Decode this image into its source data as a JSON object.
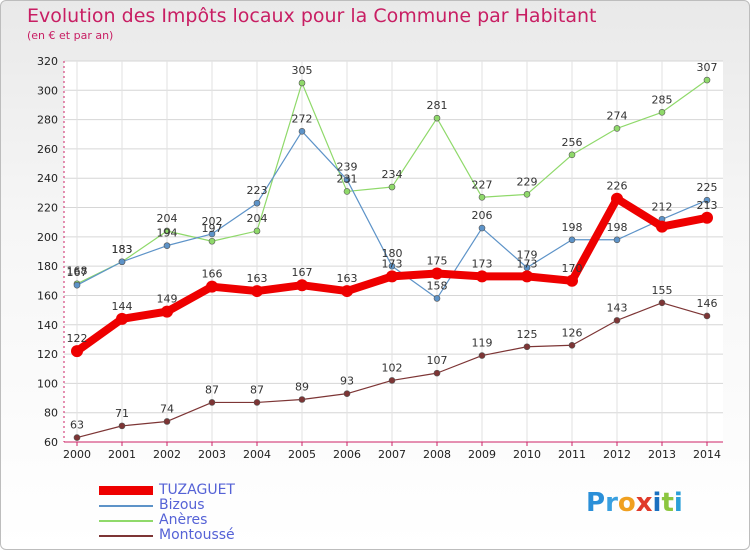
{
  "title": "Evolution des Impôts locaux pour la Commune par Habitant",
  "subtitle": "(en € et par an)",
  "logo": {
    "text": "Proxiti",
    "letters": [
      {
        "ch": "P",
        "color": "#2a8fd8"
      },
      {
        "ch": "r",
        "color": "#3aa0e0"
      },
      {
        "ch": "o",
        "color": "#f0a020"
      },
      {
        "ch": "x",
        "color": "#e03a2a"
      },
      {
        "ch": "i",
        "color": "#1a70c0"
      },
      {
        "ch": "t",
        "color": "#8cc63f"
      },
      {
        "ch": "i",
        "color": "#2a9fd8"
      }
    ]
  },
  "chart_data": {
    "type": "line",
    "title": "Evolution des Impôts locaux pour la Commune par Habitant",
    "subtitle": "(en € et par an)",
    "x": [
      "2000",
      "2001",
      "2002",
      "2003",
      "2004",
      "2005",
      "2006",
      "2007",
      "2008",
      "2009",
      "2010",
      "2011",
      "2012",
      "2013",
      "2014"
    ],
    "ylim": [
      60,
      320
    ],
    "yticks": [
      60,
      80,
      100,
      120,
      140,
      160,
      180,
      200,
      220,
      240,
      260,
      280,
      300,
      320
    ],
    "grid": true,
    "legend_position": "bottom-left",
    "series": [
      {
        "name": "TUZAGUET",
        "color": "#ee0000",
        "width": 8,
        "values": [
          122,
          144,
          149,
          166,
          163,
          167,
          163,
          173,
          175,
          173,
          173,
          170,
          226,
          207,
          213
        ],
        "labels": [
          "122",
          "144",
          "149",
          "166",
          "163",
          "167",
          "163",
          "173",
          "175",
          "173",
          "173",
          "170",
          "226",
          "",
          "213"
        ]
      },
      {
        "name": "Bizous",
        "color": "#5d93c8",
        "width": 1.2,
        "values": [
          167,
          183,
          194,
          202,
          223,
          272,
          239,
          180,
          158,
          206,
          179,
          198,
          198,
          212,
          225
        ],
        "labels": [
          "167",
          "183",
          "194",
          "202",
          "223",
          "272",
          "239",
          "180",
          "158",
          "206",
          "179",
          "198",
          "198",
          "212",
          "225"
        ]
      },
      {
        "name": "Anères",
        "color": "#8fd96a",
        "width": 1.2,
        "values": [
          168,
          183,
          204,
          197,
          204,
          305,
          231,
          234,
          281,
          227,
          229,
          256,
          274,
          285,
          307
        ],
        "labels": [
          "168",
          "183",
          "204",
          "197",
          "204",
          "305",
          "231",
          "234",
          "281",
          "227",
          "229",
          "256",
          "274",
          "285",
          "307"
        ]
      },
      {
        "name": "Montoussé",
        "color": "#7d3535",
        "width": 1.2,
        "values": [
          63,
          71,
          74,
          87,
          87,
          89,
          93,
          102,
          107,
          119,
          125,
          126,
          143,
          155,
          146
        ],
        "labels": [
          "63",
          "71",
          "74",
          "87",
          "87",
          "89",
          "93",
          "102",
          "107",
          "119",
          "125",
          "126",
          "143",
          "155",
          "146"
        ]
      }
    ]
  }
}
